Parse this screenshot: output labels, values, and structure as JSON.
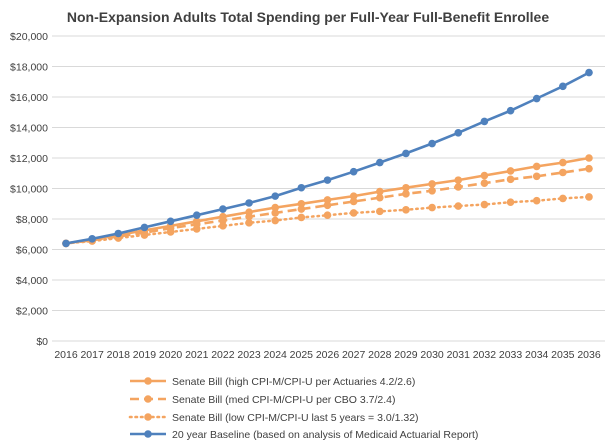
{
  "chart_data": {
    "type": "line",
    "title": "Non-Expansion Adults Total Spending per Full-Year Full-Benefit Enrollee",
    "xlabel": "",
    "ylabel": "",
    "ylim": [
      0,
      20000
    ],
    "yticks": [
      0,
      2000,
      4000,
      6000,
      8000,
      10000,
      12000,
      14000,
      16000,
      18000,
      20000
    ],
    "ytick_labels": [
      "$0",
      "$2,000",
      "$4,000",
      "$6,000",
      "$8,000",
      "$10,000",
      "$12,000",
      "$14,000",
      "$16,000",
      "$18,000",
      "$20,000"
    ],
    "grid": true,
    "legend_position": "bottom",
    "x": [
      "2016",
      "2017",
      "2018",
      "2019",
      "2020",
      "2021",
      "2022",
      "2023",
      "2024",
      "2025",
      "2026",
      "2027",
      "2028",
      "2029",
      "2030",
      "2031",
      "2032",
      "2033",
      "2034",
      "2035",
      "2036"
    ],
    "series": [
      {
        "name": "Senate Bill (high CPI-M/CPI-U per Actuaries 4.2/2.6)",
        "color": "#F4A460",
        "line_style": "solid",
        "values": [
          6400,
          6650,
          6950,
          7250,
          7550,
          7850,
          8150,
          8450,
          8750,
          9000,
          9250,
          9500,
          9800,
          10050,
          10300,
          10550,
          10850,
          11150,
          11450,
          11700,
          12000
        ]
      },
      {
        "name": "Senate Bill (med CPI-M/CPI-U per CBO 3.7/2.4)",
        "color": "#F4A460",
        "line_style": "dashed",
        "values": [
          6400,
          6600,
          6850,
          7100,
          7400,
          7650,
          7900,
          8150,
          8400,
          8650,
          8900,
          9150,
          9400,
          9650,
          9850,
          10100,
          10350,
          10600,
          10800,
          11050,
          11300
        ]
      },
      {
        "name": "Senate Bill (low CPI-M/CPI-U last 5 years = 3.0/1.32)",
        "color": "#F4A460",
        "line_style": "dotted",
        "values": [
          6400,
          6550,
          6750,
          6950,
          7150,
          7350,
          7550,
          7750,
          7900,
          8100,
          8250,
          8400,
          8500,
          8600,
          8750,
          8850,
          8950,
          9100,
          9200,
          9350,
          9450
        ]
      },
      {
        "name": "20 year Baseline (based on analysis of Medicaid Actuarial Report)",
        "color": "#4F81BD",
        "line_style": "solid",
        "values": [
          6400,
          6700,
          7050,
          7450,
          7850,
          8250,
          8650,
          9050,
          9500,
          10050,
          10550,
          11100,
          11700,
          12300,
          12950,
          13650,
          14400,
          15100,
          15900,
          16700,
          17600
        ]
      }
    ]
  }
}
